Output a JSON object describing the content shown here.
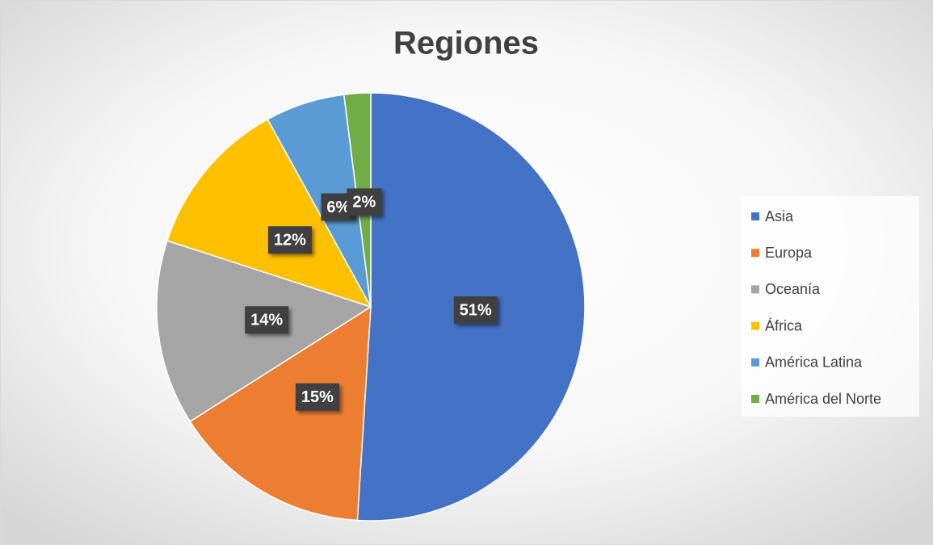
{
  "chart_data": {
    "type": "pie",
    "title": "Regiones",
    "categories": [
      "Asia",
      "Europa",
      "Oceanía",
      "África",
      "América Latina",
      "América del Norte"
    ],
    "values": [
      51,
      15,
      14,
      12,
      6,
      2
    ],
    "value_labels": [
      "51%",
      "15%",
      "14%",
      "12%",
      "6%",
      "2%"
    ],
    "colors": [
      "#4472c4",
      "#ed7d31",
      "#a5a5a5",
      "#ffc000",
      "#5b9bd5",
      "#70ad47"
    ],
    "legend": "right"
  }
}
